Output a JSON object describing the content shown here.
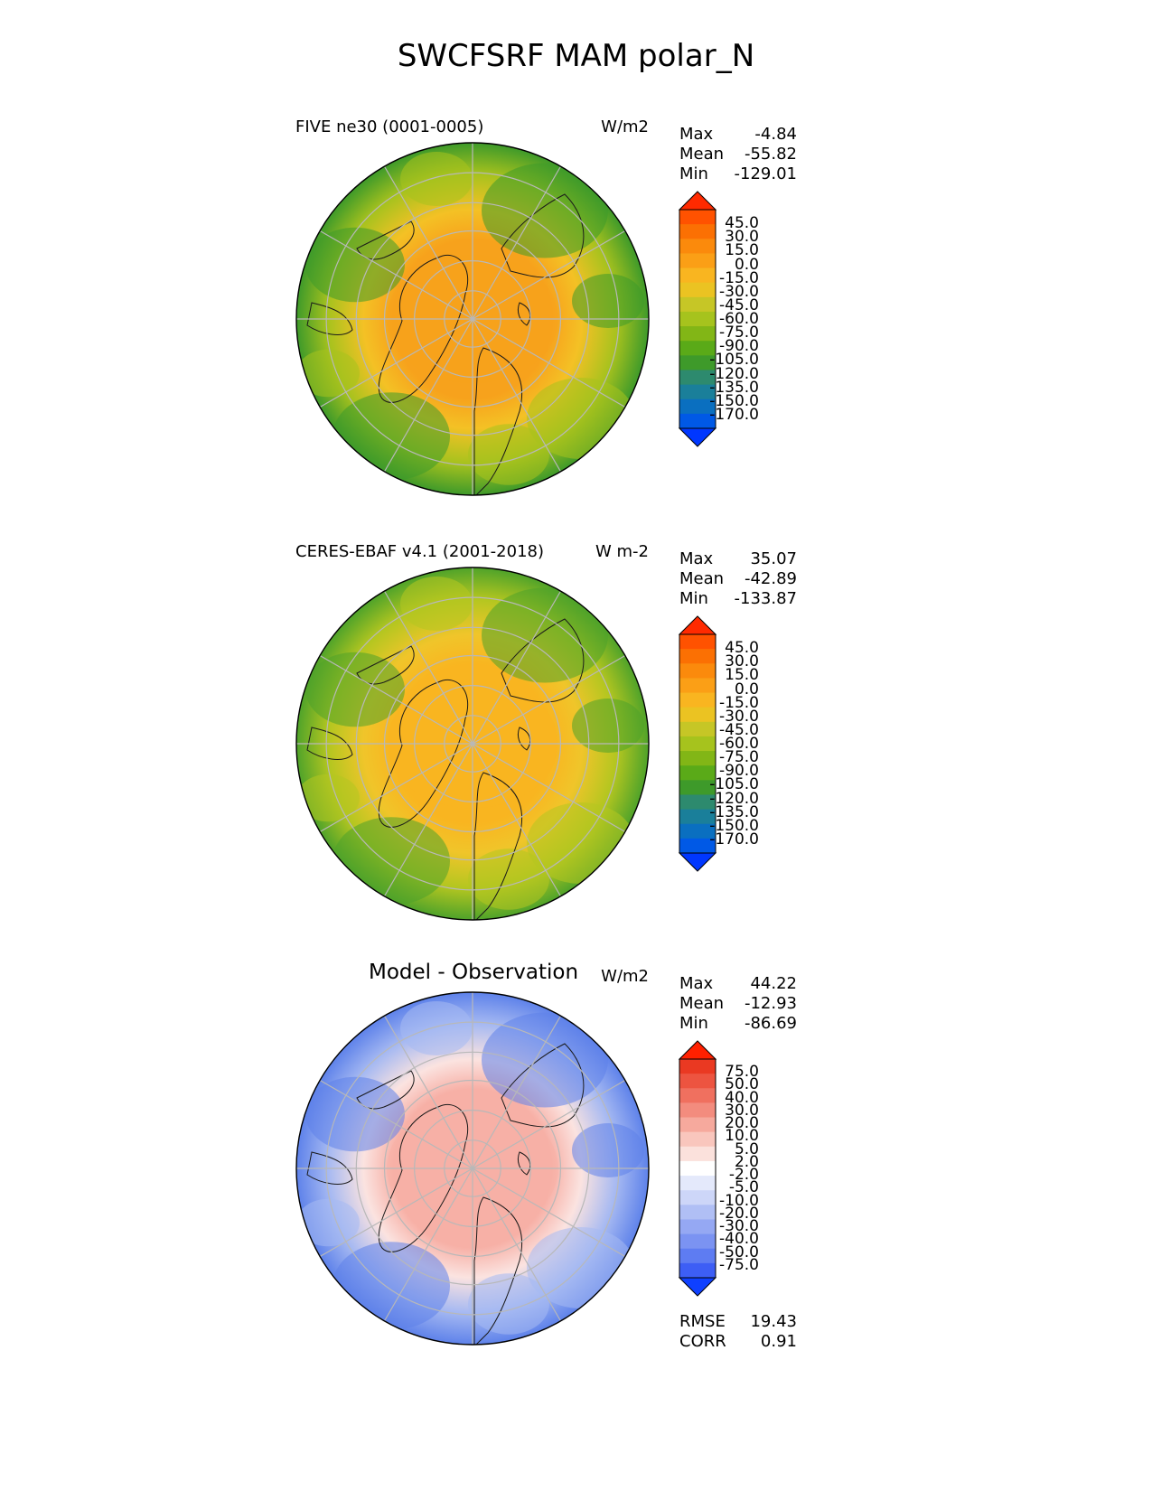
{
  "title": "SWCFSRF MAM polar_N",
  "panels": [
    {
      "id": "test",
      "title_left": "FIVE ne30 (0001-0005)",
      "units": "W/m2",
      "stats": [
        {
          "label": "Max",
          "value": "-4.84"
        },
        {
          "label": "Mean",
          "value": "-55.82"
        },
        {
          "label": "Min",
          "value": "-129.01"
        }
      ],
      "colorbar_ticks": [
        "45.0",
        "30.0",
        "15.0",
        "0.0",
        "-15.0",
        "-30.0",
        "-45.0",
        "-60.0",
        "-75.0",
        "-90.0",
        "-105.0",
        "-120.0",
        "-135.0",
        "-150.0",
        "-170.0"
      ],
      "colors": {
        "pole": "#f7a21c",
        "mid": "#f4c125",
        "outer": "#a8c21e",
        "edge": "#3e9a2a"
      }
    },
    {
      "id": "ref",
      "title_left": "CERES-EBAF v4.1 (2001-2018)",
      "units": "W m-2",
      "stats": [
        {
          "label": "Max",
          "value": "35.07"
        },
        {
          "label": "Mean",
          "value": "-42.89"
        },
        {
          "label": "Min",
          "value": "-133.87"
        }
      ],
      "colorbar_ticks": [
        "45.0",
        "30.0",
        "15.0",
        "0.0",
        "-15.0",
        "-30.0",
        "-45.0",
        "-60.0",
        "-75.0",
        "-90.0",
        "-105.0",
        "-120.0",
        "-135.0",
        "-150.0",
        "-170.0"
      ],
      "colors": {
        "pole": "#f9b520",
        "mid": "#f0c52a",
        "outer": "#b4c620",
        "edge": "#4fa32a"
      }
    },
    {
      "id": "diff",
      "title_center": "Model - Observation",
      "units": "W/m2",
      "stats": [
        {
          "label": "Max",
          "value": "44.22"
        },
        {
          "label": "Mean",
          "value": "-12.93"
        },
        {
          "label": "Min",
          "value": "-86.69"
        }
      ],
      "colorbar_ticks": [
        "75.0",
        "50.0",
        "40.0",
        "30.0",
        "20.0",
        "10.0",
        "5.0",
        "2.0",
        "-2.0",
        "-5.0",
        "-10.0",
        "-20.0",
        "-30.0",
        "-40.0",
        "-50.0",
        "-75.0"
      ],
      "colors": {
        "pole": "#f7b0a6",
        "mid": "#fbe3e0",
        "outer": "#a6b9f2",
        "edge": "#5e82ea"
      },
      "extra_stats": [
        {
          "label": "RMSE",
          "value": "19.43"
        },
        {
          "label": "CORR",
          "value": "0.91"
        }
      ]
    }
  ],
  "colormaps": {
    "abs": [
      "#0037ff",
      "#0059e6",
      "#0a6fc0",
      "#1a7f9a",
      "#2d8a6e",
      "#3e9a2a",
      "#5aaa18",
      "#82b616",
      "#a6c31d",
      "#c6c626",
      "#ebc322",
      "#f9b520",
      "#fb9f16",
      "#fb8a0c",
      "#fb7003",
      "#ff5200",
      "#ff2a00"
    ],
    "diff": [
      "#0f40ff",
      "#3d5ef5",
      "#5e7cf2",
      "#7b93f2",
      "#95a8f3",
      "#b0bff5",
      "#cdd6f8",
      "#e4e9fb",
      "#ffffff",
      "#fbe1dc",
      "#f9c6bd",
      "#f6a99d",
      "#f38c7e",
      "#f0705f",
      "#ed5440",
      "#ea3922",
      "#ff2000"
    ]
  }
}
